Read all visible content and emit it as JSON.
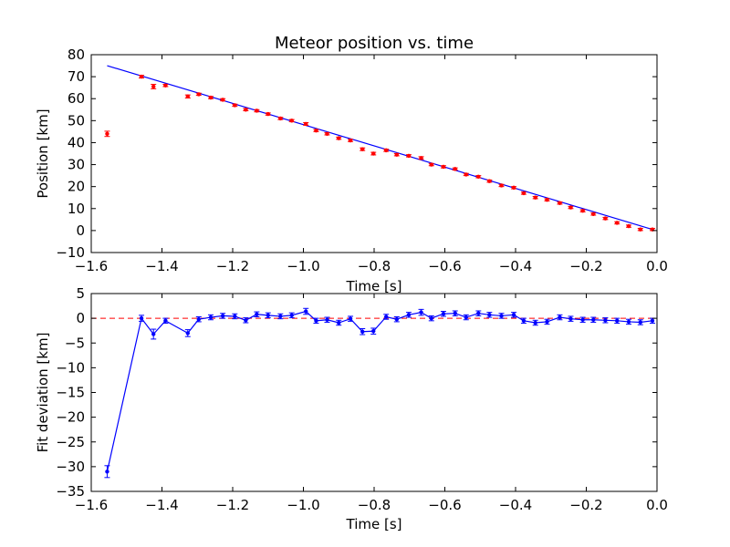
{
  "chart_data": [
    {
      "type": "scatter",
      "title": "Meteor position vs. time",
      "xlabel": "Time [s]",
      "ylabel": "Position [km]",
      "xlim": [
        -1.6,
        0.0
      ],
      "ylim": [
        -10,
        80
      ],
      "xticks": [
        "−1.6",
        "−1.4",
        "−1.2",
        "−1.0",
        "−0.8",
        "−0.6",
        "−0.4",
        "−0.2",
        "0.0"
      ],
      "xtick_values": [
        -1.6,
        -1.4,
        -1.2,
        -1.0,
        -0.8,
        -0.6,
        -0.4,
        -0.2,
        0.0
      ],
      "yticks": [
        "−10",
        "0",
        "10",
        "20",
        "30",
        "40",
        "50",
        "60",
        "70",
        "80"
      ],
      "ytick_values": [
        -10,
        0,
        10,
        20,
        30,
        40,
        50,
        60,
        70,
        80
      ],
      "grid": false,
      "legend": "none",
      "point_color": "#ff0000",
      "fit_color": "#0000ff",
      "points": {
        "x": [
          -1.555,
          -1.458,
          -1.424,
          -1.39,
          -1.327,
          -1.296,
          -1.262,
          -1.228,
          -1.194,
          -1.163,
          -1.132,
          -1.1,
          -1.065,
          -1.033,
          -0.993,
          -0.964,
          -0.933,
          -0.9,
          -0.867,
          -0.833,
          -0.802,
          -0.766,
          -0.736,
          -0.702,
          -0.667,
          -0.638,
          -0.604,
          -0.571,
          -0.54,
          -0.505,
          -0.474,
          -0.44,
          -0.405,
          -0.377,
          -0.344,
          -0.311,
          -0.275,
          -0.244,
          -0.21,
          -0.18,
          -0.146,
          -0.113,
          -0.08,
          -0.047,
          -0.013
        ],
        "y": [
          44.0,
          70.0,
          65.5,
          66.0,
          61.0,
          62.0,
          60.5,
          59.5,
          57.0,
          55.0,
          54.5,
          53.0,
          51.0,
          50.0,
          48.5,
          45.5,
          44.0,
          42.0,
          41.0,
          37.0,
          35.0,
          36.5,
          34.5,
          34.0,
          33.0,
          30.0,
          29.0,
          28.0,
          25.5,
          24.5,
          22.5,
          20.5,
          19.5,
          17.0,
          15.0,
          14.0,
          12.5,
          10.5,
          9.0,
          7.5,
          5.5,
          3.5,
          2.0,
          0.5,
          0.5
        ],
        "yerr": [
          1.2,
          0.6,
          1.0,
          0.5,
          0.7,
          0.5,
          0.5,
          0.5,
          0.5,
          0.5,
          0.5,
          0.5,
          0.5,
          0.5,
          0.6,
          0.5,
          0.5,
          0.5,
          0.5,
          0.6,
          0.6,
          0.5,
          0.5,
          0.5,
          0.6,
          0.5,
          0.5,
          0.5,
          0.5,
          0.5,
          0.5,
          0.5,
          0.5,
          0.5,
          0.5,
          0.5,
          0.5,
          0.5,
          0.5,
          0.5,
          0.5,
          0.5,
          0.5,
          0.5,
          0.5
        ]
      },
      "fit_line": {
        "x": [
          -1.555,
          -0.013
        ],
        "y": [
          75.0,
          0.5
        ]
      }
    },
    {
      "type": "line",
      "xlabel": "Time [s]",
      "ylabel": "Fit deviation [km]",
      "xlim": [
        -1.6,
        0.0
      ],
      "ylim": [
        -35,
        5
      ],
      "xticks": [
        "−1.6",
        "−1.4",
        "−1.2",
        "−1.0",
        "−0.8",
        "−0.6",
        "−0.4",
        "−0.2",
        "0.0"
      ],
      "xtick_values": [
        -1.6,
        -1.4,
        -1.2,
        -1.0,
        -0.8,
        -0.6,
        -0.4,
        -0.2,
        0.0
      ],
      "yticks": [
        "−35",
        "−30",
        "−25",
        "−20",
        "−15",
        "−10",
        "−5",
        "0",
        "5"
      ],
      "ytick_values": [
        -35,
        -30,
        -25,
        -20,
        -15,
        -10,
        -5,
        0,
        5
      ],
      "grid": false,
      "legend": "none",
      "line_color": "#0000ff",
      "zero_line_color": "#ff0000",
      "zero_line": 0,
      "series": {
        "x": [
          -1.555,
          -1.458,
          -1.424,
          -1.39,
          -1.327,
          -1.296,
          -1.262,
          -1.228,
          -1.194,
          -1.163,
          -1.132,
          -1.1,
          -1.065,
          -1.033,
          -0.993,
          -0.964,
          -0.933,
          -0.9,
          -0.867,
          -0.833,
          -0.802,
          -0.766,
          -0.736,
          -0.702,
          -0.667,
          -0.638,
          -0.604,
          -0.571,
          -0.54,
          -0.505,
          -0.474,
          -0.44,
          -0.405,
          -0.377,
          -0.344,
          -0.311,
          -0.275,
          -0.244,
          -0.21,
          -0.18,
          -0.146,
          -0.113,
          -0.08,
          -0.047,
          -0.013
        ],
        "y": [
          -31.0,
          0.0,
          -3.2,
          -0.5,
          -3.0,
          -0.2,
          0.2,
          0.5,
          0.4,
          -0.4,
          0.8,
          0.6,
          0.4,
          0.6,
          1.4,
          -0.5,
          -0.3,
          -0.9,
          -0.1,
          -2.7,
          -2.6,
          0.3,
          -0.2,
          0.7,
          1.2,
          0.0,
          0.9,
          1.0,
          0.2,
          1.0,
          0.7,
          0.5,
          0.7,
          -0.5,
          -0.9,
          -0.7,
          0.2,
          -0.1,
          -0.3,
          -0.3,
          -0.4,
          -0.5,
          -0.7,
          -0.8,
          -0.5
        ],
        "yerr": [
          1.2,
          0.6,
          1.0,
          0.5,
          0.7,
          0.5,
          0.5,
          0.5,
          0.5,
          0.5,
          0.5,
          0.5,
          0.5,
          0.5,
          0.6,
          0.5,
          0.5,
          0.5,
          0.5,
          0.6,
          0.6,
          0.5,
          0.5,
          0.5,
          0.6,
          0.5,
          0.5,
          0.5,
          0.5,
          0.5,
          0.5,
          0.5,
          0.5,
          0.5,
          0.5,
          0.5,
          0.5,
          0.5,
          0.5,
          0.5,
          0.5,
          0.5,
          0.5,
          0.5,
          0.5
        ]
      }
    }
  ]
}
